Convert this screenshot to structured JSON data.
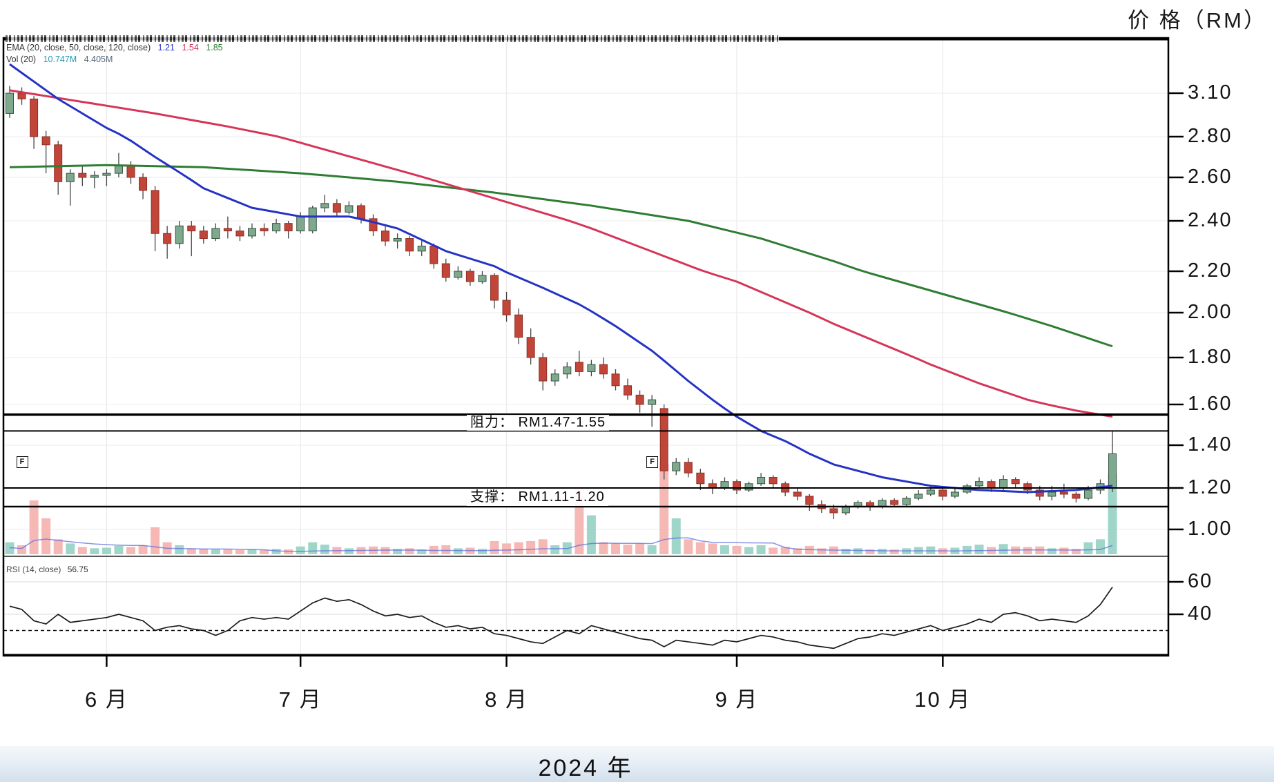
{
  "header": {
    "price_axis_title": "价 格（RM）"
  },
  "legend": {
    "ema": {
      "label": "EMA (20, close, 50, close, 120, close)",
      "values": [
        "1.21",
        "1.54",
        "1.85"
      ]
    },
    "volume": {
      "label": "Vol (20)",
      "values": [
        "10.747M",
        "4.405M"
      ]
    }
  },
  "annotations": {
    "resistance": {
      "label": "阻力： RM1.47-1.55",
      "levels": [
        1.55,
        1.47
      ]
    },
    "support": {
      "label": "支撑： RM1.11-1.20",
      "levels": [
        1.2,
        1.11
      ]
    },
    "event_flag_label": "F"
  },
  "rsi_panel": {
    "label": "RSI (14, close)",
    "value": "56.75"
  },
  "footer": {
    "year_label": "2024 年"
  },
  "axes": {
    "price_ticks": [
      "3.10",
      "2.80",
      "2.60",
      "2.40",
      "2.20",
      "2.00",
      "1.80",
      "1.60",
      "1.40",
      "1.20",
      "1.00"
    ],
    "rsi_ticks": [
      "60",
      "40"
    ],
    "rsi_dashed_level": 30
  },
  "colors": {
    "candle_up": "#7fa98f",
    "candle_up_border": "#33523f",
    "candle_down": "#c2453a",
    "candle_down_border": "#8d2f24",
    "volume_up": "#9fd6c9",
    "volume_down": "#f5b8b5",
    "ema20": "#2433c4",
    "ema50": "#d53558",
    "ema120": "#2e7d32",
    "rsi_line": "#1a1a1a",
    "level_line": "#000000",
    "grid": "#ececec"
  },
  "chart_data": {
    "type": "candlestick",
    "title": "价 格（RM）",
    "price_unit": "RM",
    "price_axis_range": [
      1.0,
      3.1
    ],
    "resistance_zone": [
      1.47,
      1.55
    ],
    "support_zone": [
      1.11,
      1.2
    ],
    "grid": true,
    "months": [
      {
        "label": "6 月",
        "index": 8
      },
      {
        "label": "7 月",
        "index": 24
      },
      {
        "label": "8 月",
        "index": 41
      },
      {
        "label": "9 月",
        "index": 60
      },
      {
        "label": "10 月",
        "index": 77
      }
    ],
    "event_flag_indices": [
      1,
      53
    ],
    "candles": [
      [
        2.96,
        3.15,
        2.93,
        3.1
      ],
      [
        3.1,
        3.14,
        3.02,
        3.06
      ],
      [
        3.06,
        3.08,
        2.74,
        2.8
      ],
      [
        2.8,
        2.84,
        2.62,
        2.76
      ],
      [
        2.76,
        2.78,
        2.52,
        2.58
      ],
      [
        2.58,
        2.64,
        2.47,
        2.62
      ],
      [
        2.62,
        2.66,
        2.56,
        2.6
      ],
      [
        2.6,
        2.63,
        2.55,
        2.61
      ],
      [
        2.61,
        2.64,
        2.56,
        2.62
      ],
      [
        2.62,
        2.72,
        2.6,
        2.66
      ],
      [
        2.66,
        2.68,
        2.57,
        2.6
      ],
      [
        2.6,
        2.62,
        2.5,
        2.54
      ],
      [
        2.54,
        2.56,
        2.28,
        2.35
      ],
      [
        2.35,
        2.38,
        2.25,
        2.31
      ],
      [
        2.31,
        2.4,
        2.29,
        2.38
      ],
      [
        2.38,
        2.4,
        2.26,
        2.36
      ],
      [
        2.36,
        2.38,
        2.31,
        2.33
      ],
      [
        2.33,
        2.39,
        2.32,
        2.37
      ],
      [
        2.37,
        2.42,
        2.33,
        2.36
      ],
      [
        2.36,
        2.38,
        2.32,
        2.34
      ],
      [
        2.34,
        2.39,
        2.33,
        2.37
      ],
      [
        2.37,
        2.39,
        2.34,
        2.36
      ],
      [
        2.36,
        2.41,
        2.35,
        2.39
      ],
      [
        2.39,
        2.4,
        2.33,
        2.36
      ],
      [
        2.36,
        2.44,
        2.35,
        2.42
      ],
      [
        2.36,
        2.47,
        2.35,
        2.46
      ],
      [
        2.46,
        2.52,
        2.44,
        2.48
      ],
      [
        2.48,
        2.5,
        2.42,
        2.44
      ],
      [
        2.44,
        2.49,
        2.43,
        2.47
      ],
      [
        2.47,
        2.48,
        2.39,
        2.41
      ],
      [
        2.41,
        2.43,
        2.34,
        2.36
      ],
      [
        2.36,
        2.38,
        2.3,
        2.32
      ],
      [
        2.32,
        2.35,
        2.29,
        2.33
      ],
      [
        2.33,
        2.34,
        2.26,
        2.28
      ],
      [
        2.28,
        2.32,
        2.26,
        2.3
      ],
      [
        2.3,
        2.31,
        2.21,
        2.23
      ],
      [
        2.23,
        2.25,
        2.15,
        2.17
      ],
      [
        2.17,
        2.22,
        2.16,
        2.2
      ],
      [
        2.2,
        2.21,
        2.13,
        2.15
      ],
      [
        2.15,
        2.2,
        2.14,
        2.18
      ],
      [
        2.18,
        2.19,
        2.02,
        2.06
      ],
      [
        2.06,
        2.1,
        1.96,
        1.99
      ],
      [
        1.99,
        2.02,
        1.86,
        1.89
      ],
      [
        1.89,
        1.93,
        1.77,
        1.8
      ],
      [
        1.8,
        1.82,
        1.66,
        1.7
      ],
      [
        1.7,
        1.75,
        1.68,
        1.73
      ],
      [
        1.73,
        1.78,
        1.71,
        1.76
      ],
      [
        1.78,
        1.83,
        1.72,
        1.74
      ],
      [
        1.74,
        1.79,
        1.72,
        1.77
      ],
      [
        1.77,
        1.8,
        1.71,
        1.73
      ],
      [
        1.73,
        1.75,
        1.66,
        1.68
      ],
      [
        1.68,
        1.71,
        1.62,
        1.64
      ],
      [
        1.64,
        1.66,
        1.56,
        1.6
      ],
      [
        1.6,
        1.64,
        1.49,
        1.62
      ],
      [
        1.58,
        1.6,
        1.24,
        1.28
      ],
      [
        1.28,
        1.34,
        1.26,
        1.32
      ],
      [
        1.32,
        1.34,
        1.25,
        1.27
      ],
      [
        1.27,
        1.29,
        1.19,
        1.22
      ],
      [
        1.22,
        1.24,
        1.17,
        1.2
      ],
      [
        1.2,
        1.25,
        1.19,
        1.23
      ],
      [
        1.23,
        1.24,
        1.17,
        1.19
      ],
      [
        1.19,
        1.23,
        1.18,
        1.22
      ],
      [
        1.22,
        1.27,
        1.21,
        1.25
      ],
      [
        1.25,
        1.26,
        1.2,
        1.22
      ],
      [
        1.22,
        1.23,
        1.16,
        1.18
      ],
      [
        1.18,
        1.2,
        1.14,
        1.16
      ],
      [
        1.16,
        1.17,
        1.09,
        1.12
      ],
      [
        1.12,
        1.14,
        1.08,
        1.1
      ],
      [
        1.1,
        1.12,
        1.05,
        1.08
      ],
      [
        1.08,
        1.12,
        1.07,
        1.11
      ],
      [
        1.11,
        1.14,
        1.1,
        1.13
      ],
      [
        1.13,
        1.14,
        1.09,
        1.11
      ],
      [
        1.11,
        1.15,
        1.1,
        1.14
      ],
      [
        1.14,
        1.15,
        1.11,
        1.12
      ],
      [
        1.12,
        1.16,
        1.11,
        1.15
      ],
      [
        1.15,
        1.19,
        1.14,
        1.17
      ],
      [
        1.17,
        1.21,
        1.16,
        1.19
      ],
      [
        1.19,
        1.2,
        1.14,
        1.16
      ],
      [
        1.16,
        1.2,
        1.15,
        1.18
      ],
      [
        1.18,
        1.22,
        1.17,
        1.21
      ],
      [
        1.21,
        1.25,
        1.2,
        1.23
      ],
      [
        1.23,
        1.24,
        1.18,
        1.2
      ],
      [
        1.2,
        1.26,
        1.19,
        1.24
      ],
      [
        1.24,
        1.25,
        1.2,
        1.22
      ],
      [
        1.22,
        1.23,
        1.17,
        1.19
      ],
      [
        1.19,
        1.21,
        1.14,
        1.16
      ],
      [
        1.16,
        1.21,
        1.14,
        1.18
      ],
      [
        1.18,
        1.22,
        1.15,
        1.17
      ],
      [
        1.17,
        1.18,
        1.13,
        1.15
      ],
      [
        1.15,
        1.21,
        1.14,
        1.19
      ],
      [
        1.19,
        1.24,
        1.17,
        1.22
      ],
      [
        1.2,
        1.47,
        1.18,
        1.36
      ]
    ],
    "volumes": [
      2.0,
      1.5,
      9.0,
      6.0,
      2.5,
      1.8,
      1.2,
      1.0,
      1.1,
      1.4,
      1.2,
      1.5,
      4.5,
      2.0,
      1.5,
      1.0,
      0.9,
      0.8,
      0.8,
      0.7,
      0.8,
      0.7,
      0.9,
      0.8,
      1.3,
      2.0,
      1.6,
      1.2,
      1.0,
      1.2,
      1.3,
      1.2,
      0.9,
      1.0,
      0.8,
      1.4,
      1.5,
      1.0,
      1.1,
      0.9,
      2.2,
      1.8,
      2.0,
      2.2,
      2.5,
      1.5,
      2.0,
      11.0,
      6.5,
      2.0,
      1.8,
      1.6,
      1.8,
      1.5,
      15.0,
      6.0,
      2.5,
      2.0,
      1.8,
      1.5,
      1.4,
      1.2,
      1.5,
      1.1,
      1.2,
      1.0,
      1.4,
      1.0,
      1.3,
      0.9,
      1.0,
      0.8,
      0.9,
      0.8,
      1.0,
      1.2,
      1.3,
      1.0,
      1.1,
      1.4,
      1.6,
      1.2,
      1.7,
      1.3,
      1.2,
      1.3,
      1.0,
      1.1,
      0.9,
      2.0,
      2.5,
      13.5
    ],
    "rsi": [
      45,
      43,
      36,
      34,
      40,
      35,
      36,
      37,
      38,
      40,
      38,
      36,
      30,
      32,
      33,
      31,
      30,
      27,
      30,
      36,
      38,
      37,
      38,
      37,
      42,
      47,
      50,
      48,
      49,
      46,
      42,
      39,
      40,
      38,
      39,
      35,
      32,
      33,
      31,
      32,
      28,
      27,
      25,
      23,
      22,
      26,
      30,
      28,
      33,
      31,
      29,
      27,
      25,
      24,
      20,
      24,
      23,
      22,
      21,
      24,
      23,
      25,
      27,
      26,
      24,
      23,
      21,
      20,
      19,
      22,
      25,
      26,
      28,
      27,
      29,
      31,
      33,
      30,
      32,
      34,
      37,
      35,
      40,
      41,
      39,
      36,
      37,
      36,
      35,
      39,
      46,
      56.75
    ],
    "ema20_keypoints": [
      [
        0,
        3.3
      ],
      [
        4,
        3.06
      ],
      [
        8,
        2.86
      ],
      [
        12,
        2.7
      ],
      [
        16,
        2.55
      ],
      [
        20,
        2.46
      ],
      [
        24,
        2.42
      ],
      [
        28,
        2.42
      ],
      [
        32,
        2.37
      ],
      [
        36,
        2.28
      ],
      [
        40,
        2.22
      ],
      [
        44,
        2.12
      ],
      [
        47,
        2.04
      ],
      [
        50,
        1.94
      ],
      [
        53,
        1.83
      ],
      [
        56,
        1.7
      ],
      [
        58,
        1.62
      ],
      [
        60,
        1.54
      ],
      [
        62,
        1.47
      ],
      [
        64,
        1.42
      ],
      [
        66,
        1.36
      ],
      [
        68,
        1.31
      ],
      [
        70,
        1.28
      ],
      [
        72,
        1.25
      ],
      [
        74,
        1.23
      ],
      [
        76,
        1.21
      ],
      [
        80,
        1.19
      ],
      [
        84,
        1.18
      ],
      [
        88,
        1.19
      ],
      [
        91,
        1.21
      ]
    ],
    "ema50_keypoints": [
      [
        0,
        3.12
      ],
      [
        6,
        3.04
      ],
      [
        12,
        2.96
      ],
      [
        18,
        2.87
      ],
      [
        24,
        2.77
      ],
      [
        30,
        2.67
      ],
      [
        36,
        2.57
      ],
      [
        42,
        2.47
      ],
      [
        48,
        2.37
      ],
      [
        54,
        2.26
      ],
      [
        60,
        2.15
      ],
      [
        64,
        2.05
      ],
      [
        68,
        1.95
      ],
      [
        72,
        1.86
      ],
      [
        76,
        1.77
      ],
      [
        80,
        1.69
      ],
      [
        84,
        1.62
      ],
      [
        88,
        1.57
      ],
      [
        91,
        1.54
      ]
    ],
    "ema120_keypoints": [
      [
        0,
        2.65
      ],
      [
        8,
        2.66
      ],
      [
        16,
        2.65
      ],
      [
        24,
        2.62
      ],
      [
        32,
        2.58
      ],
      [
        40,
        2.53
      ],
      [
        48,
        2.47
      ],
      [
        56,
        2.4
      ],
      [
        62,
        2.33
      ],
      [
        68,
        2.24
      ],
      [
        74,
        2.14
      ],
      [
        80,
        2.04
      ],
      [
        86,
        1.94
      ],
      [
        91,
        1.85
      ]
    ]
  }
}
